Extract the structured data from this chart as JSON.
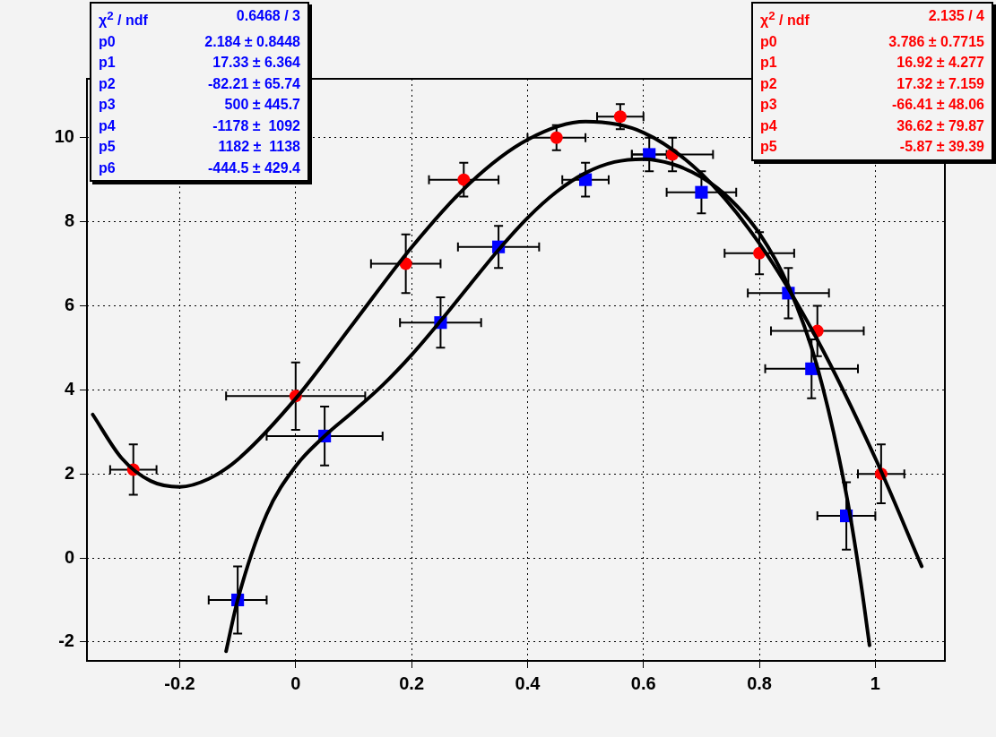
{
  "chart_data": {
    "type": "scatter",
    "xlim": [
      -0.36,
      1.12
    ],
    "ylim": [
      -2.45,
      11.4
    ],
    "xticks": [
      -0.2,
      0,
      0.2,
      0.4,
      0.6,
      0.8,
      1
    ],
    "yticks": [
      -2,
      0,
      2,
      4,
      6,
      8,
      10
    ],
    "grid": true,
    "series": [
      {
        "marker": "square",
        "color": "#0000ff",
        "x": [
          -0.1,
          0.05,
          0.25,
          0.35,
          0.5,
          0.61,
          0.7,
          0.85,
          0.89,
          0.95
        ],
        "values": [
          -1.0,
          2.9,
          5.6,
          7.4,
          9.0,
          9.6,
          8.7,
          6.3,
          4.5,
          1.0
        ],
        "xerrors": [
          0.05,
          0.1,
          0.07,
          0.07,
          0.04,
          0.03,
          0.06,
          0.07,
          0.08,
          0.05
        ],
        "errors": [
          0.8,
          0.7,
          0.6,
          0.5,
          0.4,
          0.4,
          0.5,
          0.6,
          0.7,
          0.8
        ]
      },
      {
        "marker": "circle",
        "color": "#ff0000",
        "x": [
          -0.28,
          0,
          0.19,
          0.29,
          0.45,
          0.56,
          0.65,
          0.8,
          0.9,
          1.01
        ],
        "values": [
          2.1,
          3.85,
          7.0,
          9.0,
          10.0,
          10.5,
          9.6,
          7.25,
          5.4,
          2.0
        ],
        "xerrors": [
          0.04,
          0.12,
          0.06,
          0.06,
          0.05,
          0.04,
          0.07,
          0.06,
          0.08,
          0.04
        ],
        "errors": [
          0.6,
          0.8,
          0.7,
          0.4,
          0.3,
          0.3,
          0.4,
          0.5,
          0.6,
          0.7
        ]
      },
      {
        "type": "line",
        "marker": "none",
        "line_style": "solid",
        "color": "#000000",
        "x": [
          -0.12,
          -0.1,
          -0.05,
          0,
          0.05,
          0.1,
          0.15,
          0.2,
          0.25,
          0.3,
          0.35,
          0.4,
          0.45,
          0.5,
          0.55,
          0.6,
          0.65,
          0.7,
          0.75,
          0.8,
          0.85,
          0.9,
          0.95,
          0.975,
          0.99
        ],
        "values": [
          -2.22,
          -1.0,
          1.04,
          2.18,
          2.9,
          3.49,
          4.11,
          4.83,
          5.64,
          6.49,
          7.33,
          8.09,
          8.71,
          9.16,
          9.42,
          9.49,
          9.37,
          9.06,
          8.53,
          7.72,
          6.47,
          4.54,
          1.51,
          -0.59,
          -2.08
        ]
      },
      {
        "type": "line",
        "marker": "none",
        "line_style": "solid",
        "color": "#000000",
        "x": [
          -0.35,
          -0.3,
          -0.25,
          -0.2,
          -0.15,
          -0.1,
          0,
          0.1,
          0.2,
          0.3,
          0.4,
          0.5,
          0.6,
          0.7,
          0.8,
          0.9,
          1.0,
          1.08
        ],
        "values": [
          3.41,
          2.37,
          1.83,
          1.69,
          1.88,
          2.34,
          3.79,
          5.59,
          7.39,
          8.91,
          9.95,
          10.38,
          10.12,
          9.14,
          7.48,
          5.19,
          2.37,
          -0.2
        ]
      }
    ],
    "annotations": [
      "χ$^{2}$ / ndf\t0.6468 / 3\np0\t2.184 ± 0.8448\np1\t17.33 ± 6.364\np2\t-82.21 ± 65.74\np3\t500 ± 445.7\np4\t-1178 ±  1092\np5\t1182 ±  1138\np6\t-444.5 ± 429.4",
      "χ$^{2}$ / ndf\t2.135 / 4\np0\t3.786 ± 0.7715\np1\t16.92 ± 4.277\np2\t17.32 ± 7.159\np3\t-66.41 ± 48.06\np4\t36.62 ± 79.87\np5\t-5.87 ± 39.39"
    ]
  }
}
